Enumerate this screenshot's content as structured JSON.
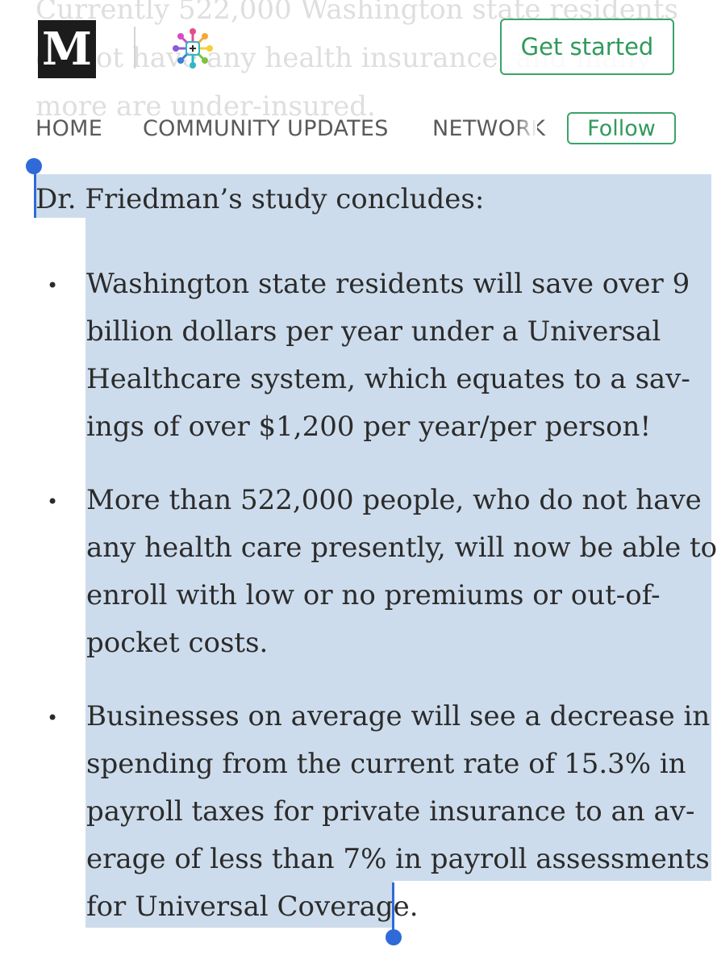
{
  "background_text": {
    "lines": [
      "Currently 522,000 Washington state residents",
      "do not have any health insurance, and many",
      "more are under-insured."
    ]
  },
  "header": {
    "logo_letter": "M",
    "publication_logo_icon": "people-circle-logo-icon",
    "get_started_label": "Get started"
  },
  "nav": {
    "items": [
      "HOME",
      "COMMUNITY UPDATES",
      "NETWORK"
    ],
    "follow_label": "Follow"
  },
  "article": {
    "intro": "Dr. Friedman’s study concludes:",
    "bullet_symbol": "•",
    "bullets": [
      {
        "lines": [
          "Washington state residents will save over 9",
          "billion dollars per year under a Universal",
          "Healthcare system, which equates to a sav-",
          "ings of over $1,200 per year/per person!"
        ]
      },
      {
        "lines": [
          "More than 522,000 people, who do not have",
          "any health care presently, will now be able to",
          "enroll with low or no premiums or out-of-",
          "pocket costs."
        ]
      },
      {
        "lines": [
          "Businesses on average will see a decrease in",
          "spending from the current rate of 15.3% in",
          "payroll taxes for private insurance to an av-",
          "erage of less than 7% in payroll assessments",
          "for Universal Coverage."
        ]
      }
    ]
  },
  "colors": {
    "accent_green": "#3aa36a",
    "selection": "#cddcec",
    "handle_blue": "#2f6ad8"
  }
}
